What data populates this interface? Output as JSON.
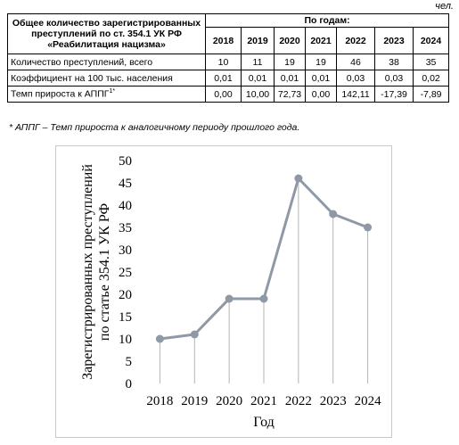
{
  "unit_label": "чел.",
  "table": {
    "header_main": "Общее количество зарегистрированных преступлений по ст. 354.1 УК РФ «Реабилитация нацизма»",
    "header_years_group": "По годам:",
    "years": [
      "2018",
      "2019",
      "2020",
      "2021",
      "2022",
      "2023",
      "2024"
    ],
    "rows": [
      {
        "label": "Количество преступлений, всего",
        "values": [
          "10",
          "11",
          "19",
          "19",
          "46",
          "38",
          "35"
        ]
      },
      {
        "label": "Коэффициент на 100 тыс. населения",
        "values": [
          "0,01",
          "0,01",
          "0,01",
          "0,01",
          "0,03",
          "0,03",
          "0,02"
        ]
      },
      {
        "label": "Темп прироста к АППГ",
        "label_sup": "1*",
        "values": [
          "0,00",
          "10,00",
          "72,73",
          "0,00",
          "142,11",
          "-17,39",
          "-7,89"
        ]
      }
    ]
  },
  "footnote": "* АППГ – Темп прироста к аналогичному периоду прошлого года.",
  "chart_data": {
    "type": "line",
    "categories": [
      "2018",
      "2019",
      "2020",
      "2021",
      "2022",
      "2023",
      "2024"
    ],
    "series": [
      {
        "values": [
          10,
          11,
          19,
          19,
          46,
          38,
          35
        ]
      }
    ],
    "xlabel": "Год",
    "ylabel": "Зарегистрированных преступлений по статье 354.1 УК РФ",
    "ylabel_lines": [
      "Зарегистрированных преступлений",
      "по статье 354.1 УК РФ"
    ],
    "ylim": [
      0,
      50
    ],
    "yticks": [
      "0",
      "5",
      "10",
      "15",
      "20",
      "25",
      "30",
      "35",
      "40",
      "45",
      "50"
    ],
    "grid": false,
    "drop_lines": true,
    "line_color": "#8f99a6",
    "marker_color": "#8f99a6",
    "drop_line_color": "#b4b4b4"
  }
}
